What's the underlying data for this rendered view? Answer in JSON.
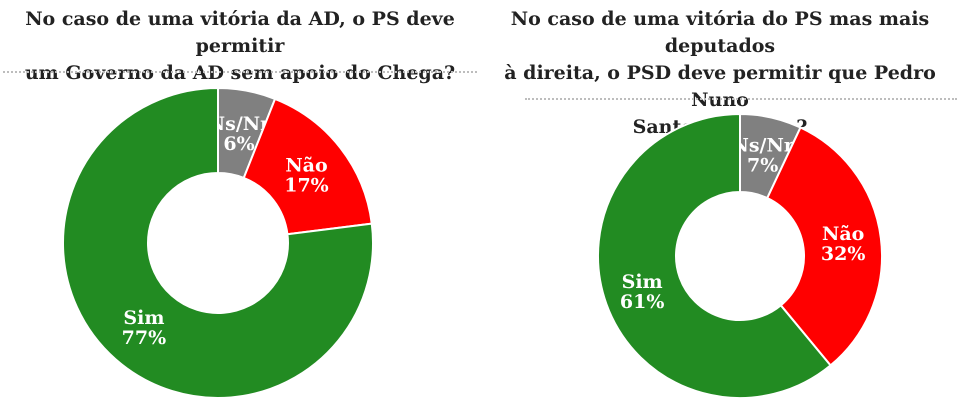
{
  "chart_data": [
    {
      "type": "pie",
      "title": "No caso de uma vitória da AD, o PS deve permitir\num Governo da AD sem apoio do Chega?",
      "slices": [
        {
          "label": "Ns/Nr",
          "value": 6,
          "value_label": "6%",
          "color": "#808080"
        },
        {
          "label": "Não",
          "value": 17,
          "value_label": "17%",
          "color": "#ff0000"
        },
        {
          "label": "Sim",
          "value": 77,
          "value_label": "77%",
          "color": "#228b22"
        }
      ]
    },
    {
      "type": "pie",
      "title": "No caso de uma vitória do PS mas mais deputados\nà direita, o PSD deve permitir que Pedro Nuno\nSantos governe?",
      "slices": [
        {
          "label": "Ns/Nr",
          "value": 7,
          "value_label": "7%",
          "color": "#808080"
        },
        {
          "label": "Não",
          "value": 32,
          "value_label": "32%",
          "color": "#ff0000"
        },
        {
          "label": "Sim",
          "value": 61,
          "value_label": "61%",
          "color": "#228b22"
        }
      ]
    }
  ]
}
